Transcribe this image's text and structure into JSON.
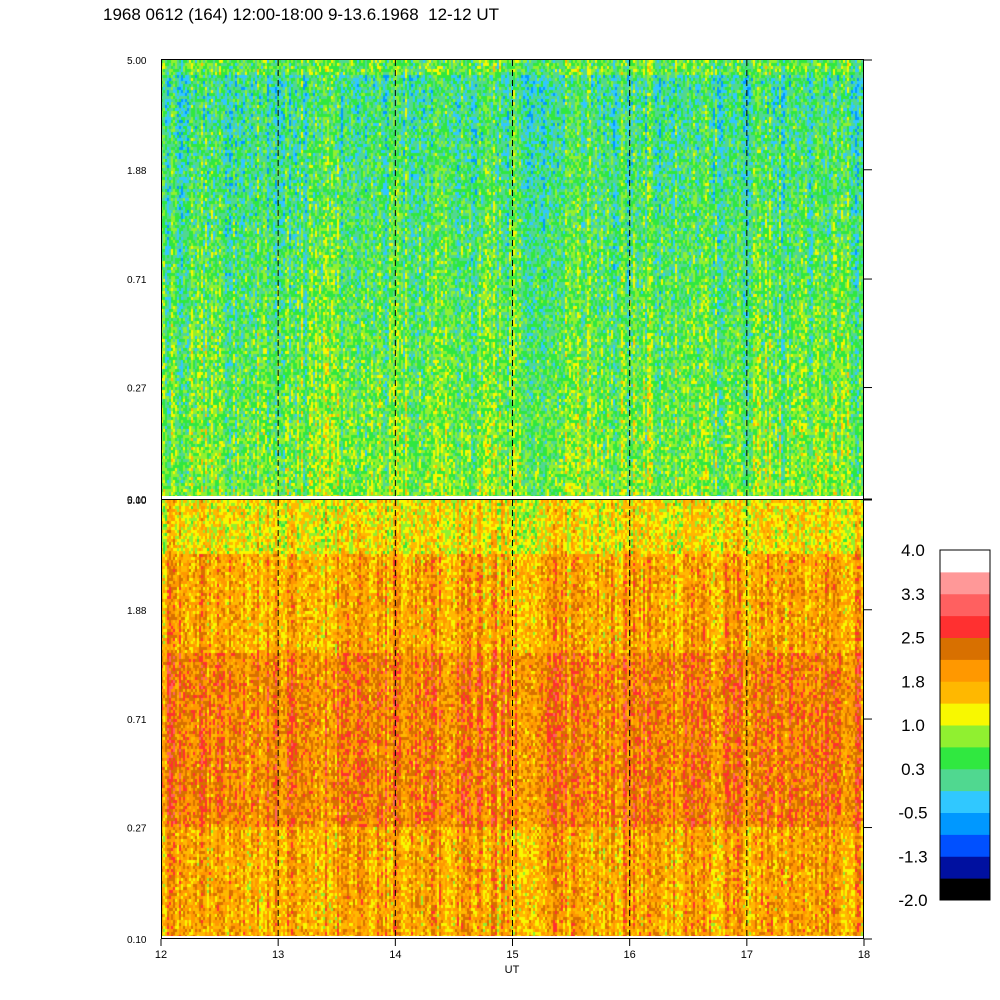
{
  "title": "1968 0612 (164) 12:00-18:00 9-13.6.1968  12-12 UT",
  "chart_data": [
    {
      "type": "heatmap",
      "panel": "upper",
      "x_range": [
        12,
        18
      ],
      "y_scale": "log",
      "y_range": [
        0.1,
        5.0
      ],
      "y_tick_labels": [
        "5.00",
        "1.88",
        "0.71",
        "0.27",
        "0.10"
      ],
      "y_ticks": [
        5.0,
        1.88,
        0.71,
        0.27,
        0.1
      ],
      "dominant_level": 0.4
    },
    {
      "type": "heatmap",
      "panel": "lower",
      "x_range": [
        12,
        18
      ],
      "xlabel": "UT",
      "x_ticks": [
        12,
        13,
        14,
        15,
        16,
        17,
        18
      ],
      "x_tick_labels": [
        "12",
        "13",
        "14",
        "15",
        "16",
        "17",
        "18"
      ],
      "y_scale": "log",
      "y_range": [
        0.1,
        5.0
      ],
      "y_tick_labels": [
        "5.00",
        "1.88",
        "0.71",
        "0.27",
        "0.10"
      ],
      "y_ticks": [
        5.0,
        1.88,
        0.71,
        0.27,
        0.1
      ],
      "dominant_level": 1.8
    }
  ],
  "vertical_markers_ut": [
    13,
    14,
    15,
    16,
    17
  ],
  "colorbar": {
    "labels": [
      "4.0",
      "3.3",
      "2.5",
      "1.8",
      "1.0",
      "0.3",
      "-0.5",
      "-1.3",
      "-2.0"
    ],
    "min": -2.0,
    "max": 4.0,
    "colors": [
      "#000000",
      "#0010a0",
      "#0050ff",
      "#0098ff",
      "#30c8ff",
      "#50d890",
      "#30e840",
      "#90f030",
      "#f8f800",
      "#ffb800",
      "#ff9800",
      "#d87000",
      "#ff3030",
      "#ff6060",
      "#ff9898",
      "#ffffff"
    ]
  }
}
